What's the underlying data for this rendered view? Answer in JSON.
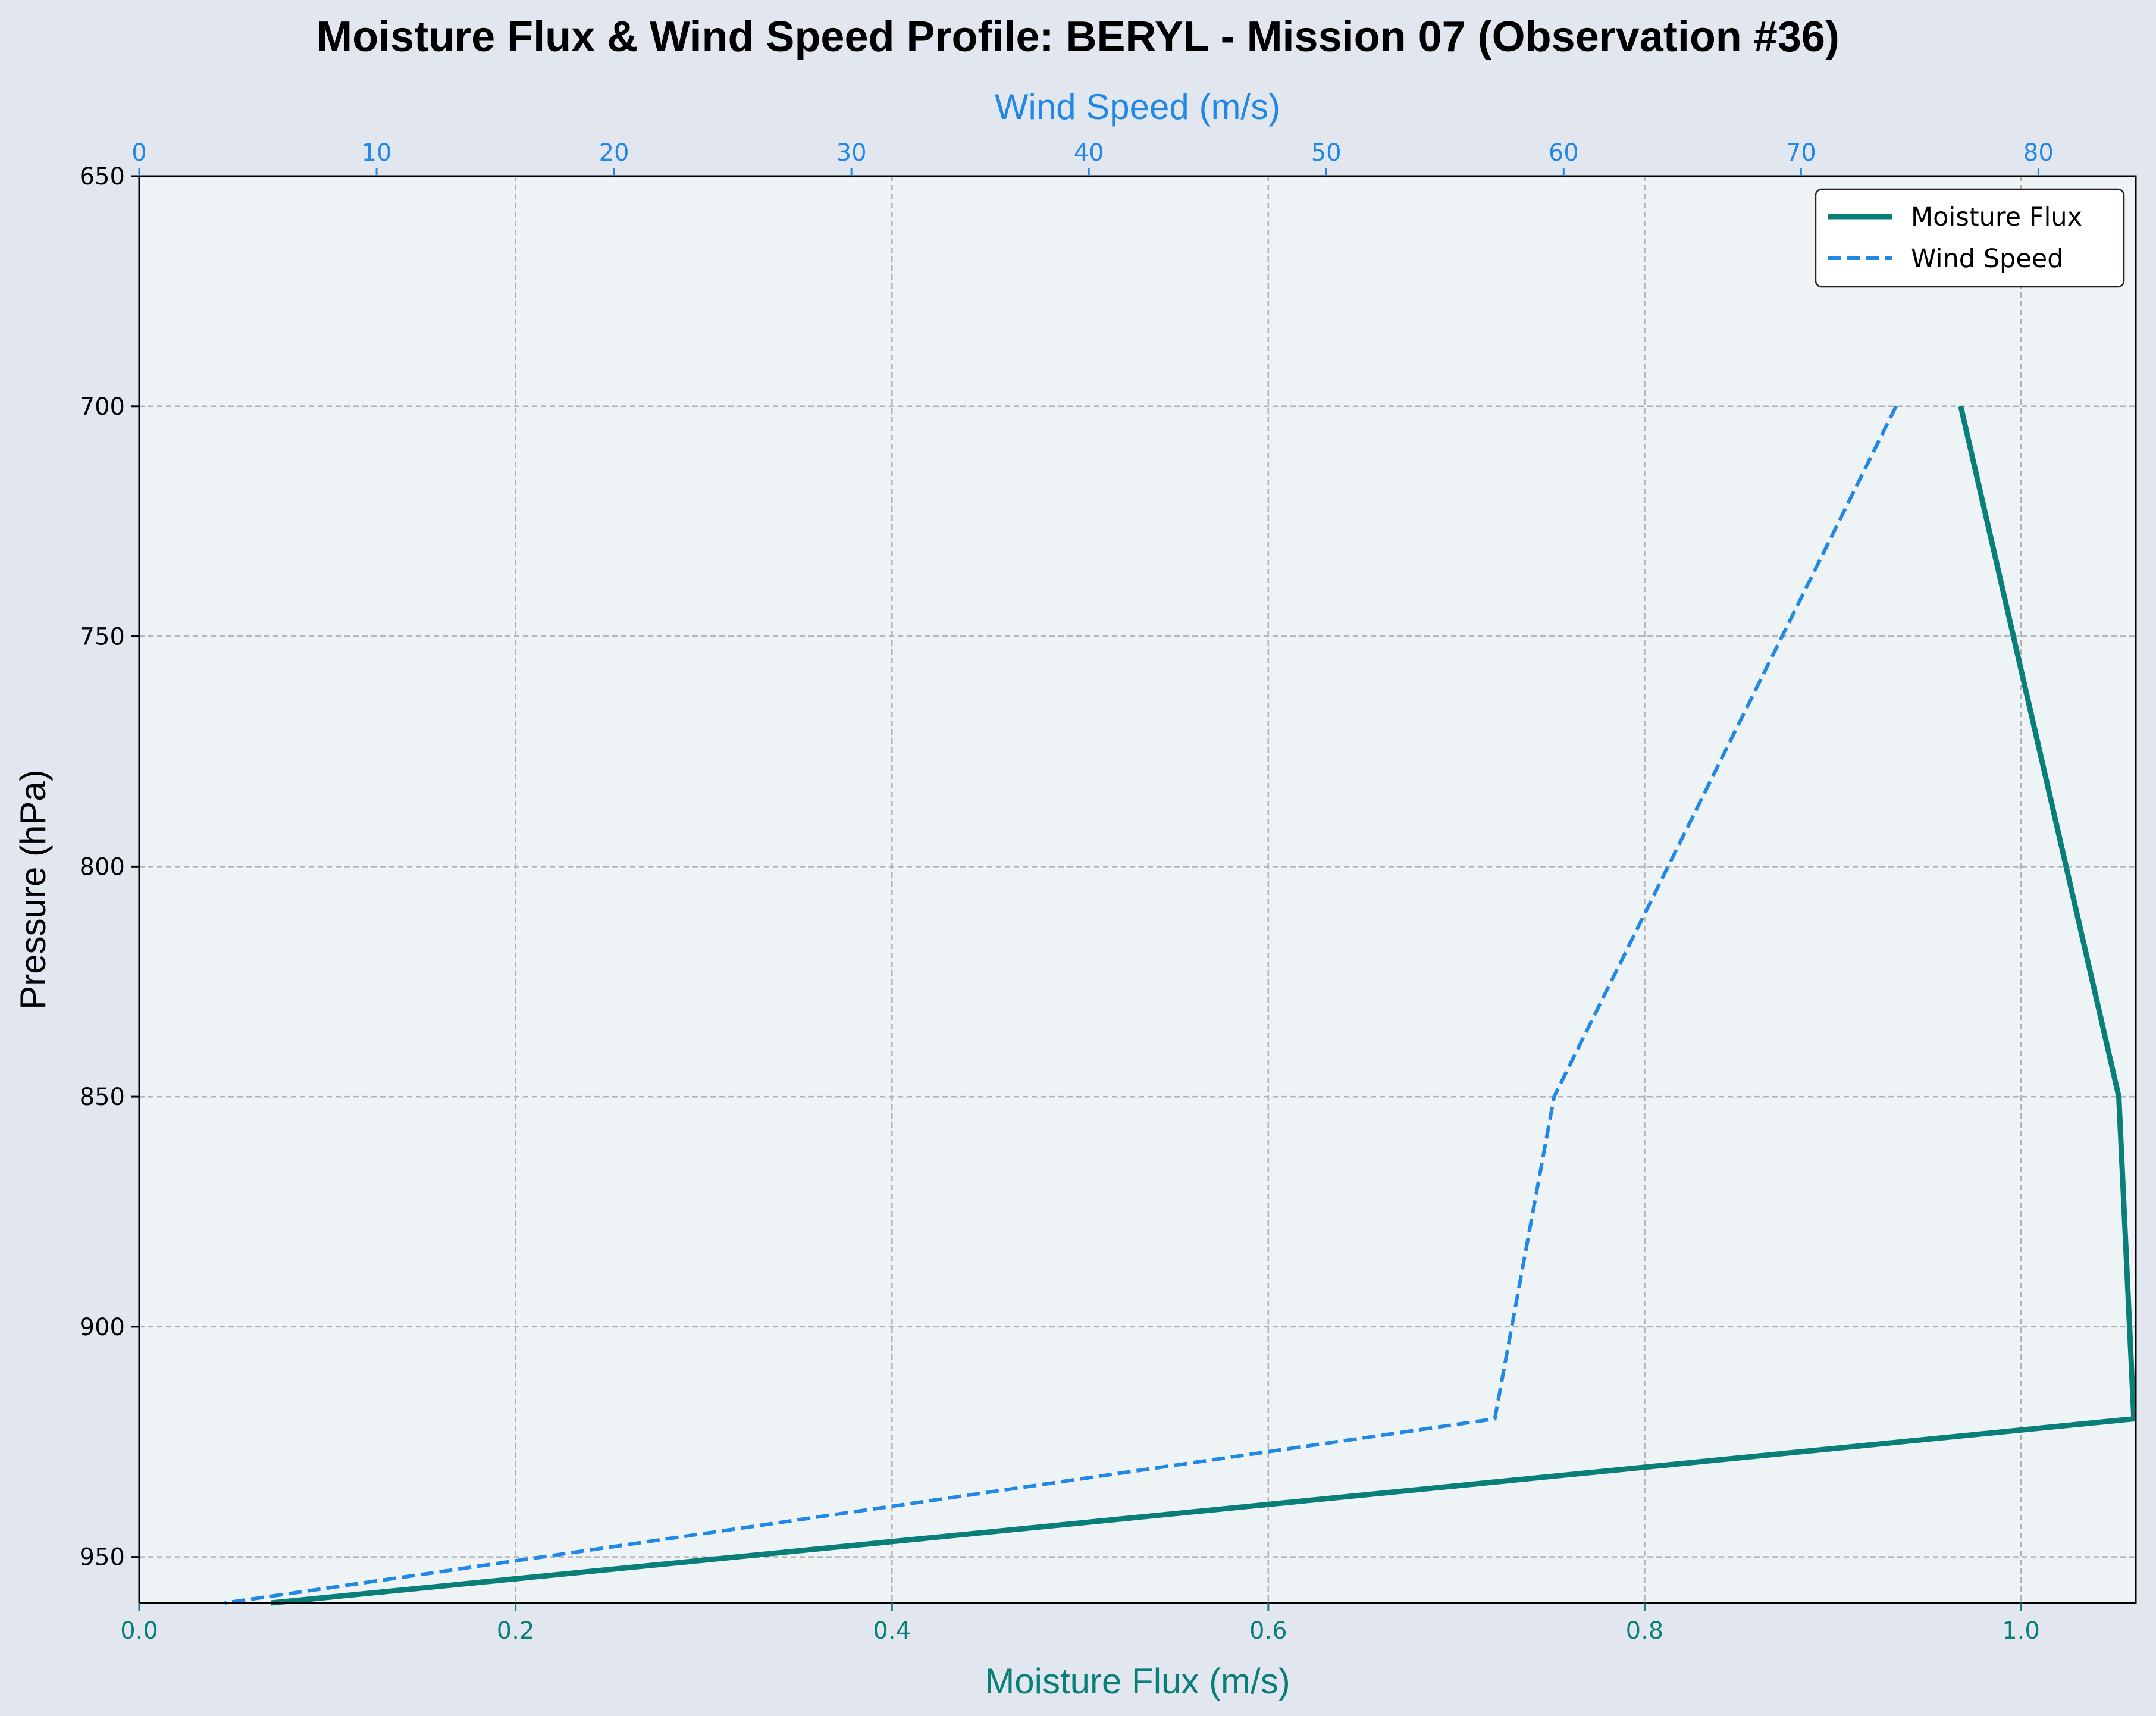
{
  "chart_data": {
    "type": "line",
    "title": "Moisture Flux & Wind Speed Profile: BERYL - Mission 07 (Observation #36)",
    "ylabel": "Pressure (hPa)",
    "xlabel_bottom": "Moisture Flux (m/s)",
    "xlabel_top": "Wind Speed (m/s)",
    "ylim": [
      960,
      650
    ],
    "y_inverted": true,
    "yticks": [
      650,
      700,
      750,
      800,
      850,
      900,
      950
    ],
    "xlim_bottom": [
      0,
      1.061
    ],
    "xticks_bottom": [
      "0.0",
      "0.2",
      "0.4",
      "0.6",
      "0.8",
      "1.0"
    ],
    "xlim_top": [
      0,
      84.1
    ],
    "xticks_top": [
      "0",
      "10",
      "20",
      "30",
      "40",
      "50",
      "60",
      "70",
      "80"
    ],
    "grid": true,
    "legend_position": "upper right",
    "series": [
      {
        "name": "Moisture Flux",
        "axis": "bottom",
        "color": "#0a7f7a",
        "style": "solid",
        "pressure": [
          700,
          850,
          920,
          960
        ],
        "values": [
          0.968,
          1.052,
          1.06,
          0.07
        ]
      },
      {
        "name": "Wind Speed",
        "axis": "top",
        "color": "#2288e6",
        "style": "dashed",
        "pressure": [
          700,
          850,
          920,
          960
        ],
        "values": [
          74.0,
          59.6,
          57.1,
          3.6
        ]
      }
    ]
  }
}
